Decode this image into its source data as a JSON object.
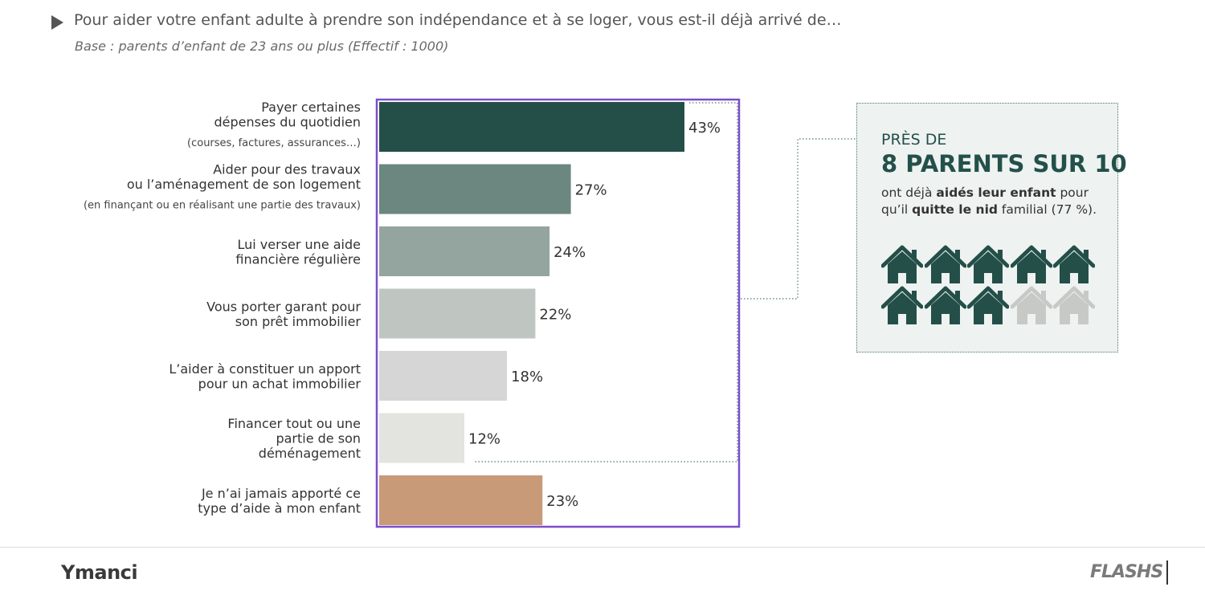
{
  "header": {
    "title": "Pour aider votre enfant adulte à prendre son indépendance et à se loger, vous est-il déjà arrivé de…",
    "subtitle": "Base : parents d’enfant de 23 ans ou plus (Effectif : 1000)"
  },
  "chart_data": {
    "type": "bar",
    "orientation": "horizontal",
    "categories": [
      [
        "Payer certaines",
        "dépenses du quotidien",
        "(courses, factures, assurances…)"
      ],
      [
        "Aider pour des travaux",
        "ou l’aménagement de son logement",
        "(en finançant ou en réalisant une partie des travaux)"
      ],
      [
        "Lui verser une aide",
        "financière régulière"
      ],
      [
        "Vous porter garant pour",
        "son prêt immobilier"
      ],
      [
        "L’aider à constituer un apport",
        "pour un achat immobilier"
      ],
      [
        "Financer tout ou une",
        "partie de son",
        "déménagement"
      ],
      [
        "Je n’ai jamais apporté ce",
        "type d’aide à mon enfant"
      ]
    ],
    "values": [
      43,
      27,
      24,
      22,
      18,
      12,
      23
    ],
    "value_labels": [
      "43%",
      "27%",
      "24%",
      "22%",
      "18%",
      "12%",
      "23%"
    ],
    "colors": [
      "#244f49",
      "#6b877f",
      "#93a59e",
      "#bfc5c1",
      "#d5d6d5",
      "#e3e3df",
      "#c89a78"
    ],
    "highlight_color": "#7c4dcc",
    "xlabel": "",
    "ylabel": ""
  },
  "callout": {
    "pre": "PRÈS DE",
    "big": "8 PARENTS SUR 10",
    "text_parts": [
      "ont déjà ",
      "aidés leur enfant",
      " pour qu’il ",
      "quitte le nid",
      " familial (77 %)."
    ],
    "houses_total": 10,
    "houses_filled": 8,
    "house_icon": "house-icon",
    "filled_color": "#244f49",
    "empty_color": "#c7c9c7"
  },
  "footer": {
    "logo": "Ymanci",
    "brand": "FLASHS"
  }
}
